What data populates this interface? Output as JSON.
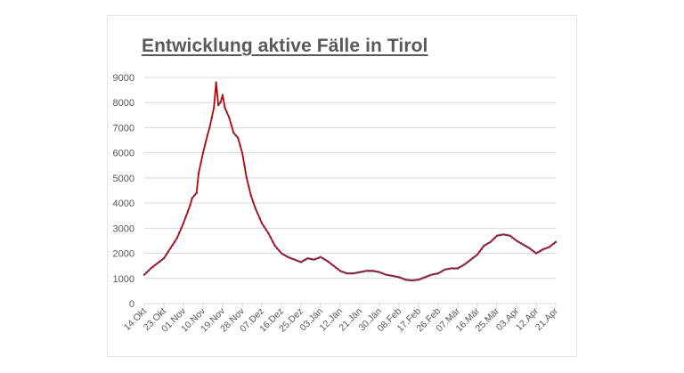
{
  "chart_data": {
    "type": "line",
    "title": "Entwicklung aktive Fälle in Tirol",
    "xlabel": "",
    "ylabel": "",
    "ylim": [
      0,
      9000
    ],
    "yticks": [
      0,
      1000,
      2000,
      3000,
      4000,
      5000,
      6000,
      7000,
      8000,
      9000
    ],
    "grid": true,
    "legend": "none",
    "line_color": "#c00000",
    "marker_color": "#7b2c4f",
    "xtick_labels": [
      "14.Okt",
      "23.Okt",
      "01.Nov",
      "10.Nov",
      "19.Nov",
      "28.Nov",
      "07.Dez",
      "16.Dez",
      "25.Dez",
      "03.Jän",
      "12.Jän",
      "21.Jän",
      "30.Jän",
      "08.Feb",
      "17.Feb",
      "26.Feb",
      "07.Mär",
      "16.Mär",
      "25.Mär",
      "03.Apr",
      "12.Apr",
      "21.Apr"
    ],
    "series": [
      {
        "name": "aktive Fälle",
        "day_offsets": [
          0,
          3,
          6,
          9,
          12,
          15,
          18,
          21,
          22,
          24,
          25,
          27,
          29,
          30,
          32,
          33,
          34,
          35,
          36,
          37,
          39,
          41,
          43,
          45,
          47,
          49,
          51,
          54,
          57,
          60,
          63,
          66,
          69,
          72,
          75,
          78,
          81,
          84,
          87,
          90,
          93,
          96,
          99,
          102,
          105,
          108,
          111,
          114,
          117,
          120,
          123,
          126,
          129,
          132,
          135,
          138,
          141,
          144,
          147,
          150,
          153,
          156,
          159,
          162,
          165,
          168,
          171,
          174,
          177,
          180,
          183,
          186,
          189
        ],
        "values": [
          1150,
          1400,
          1600,
          1800,
          2200,
          2600,
          3200,
          3900,
          4200,
          4400,
          5200,
          6000,
          6700,
          7000,
          7800,
          8800,
          7900,
          8000,
          8300,
          7800,
          7400,
          6800,
          6600,
          6000,
          5000,
          4300,
          3800,
          3200,
          2800,
          2300,
          2000,
          1850,
          1750,
          1650,
          1800,
          1750,
          1850,
          1700,
          1500,
          1300,
          1200,
          1200,
          1250,
          1300,
          1300,
          1250,
          1150,
          1100,
          1050,
          950,
          920,
          950,
          1050,
          1150,
          1200,
          1350,
          1400,
          1400,
          1550,
          1750,
          1950,
          2300,
          2450,
          2700,
          2750,
          2700,
          2500,
          2350,
          2200,
          2000,
          2150,
          2250,
          2450
        ]
      }
    ]
  }
}
